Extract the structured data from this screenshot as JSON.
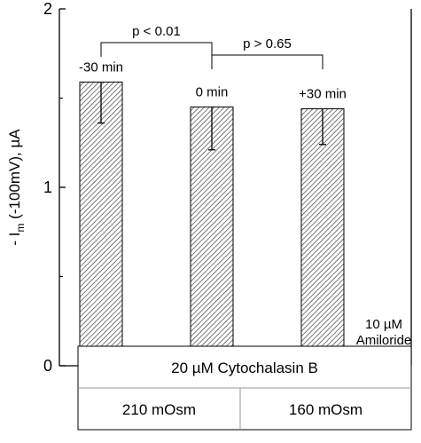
{
  "chart_data": {
    "type": "bar",
    "ylabel_prefix": "- I",
    "ylabel_sub": "m",
    "ylabel_suffix": " (-100mV), µA",
    "ylim": [
      0,
      2
    ],
    "yticks": [
      {
        "value": 0,
        "label": "0"
      },
      {
        "value": 1,
        "label": "1"
      },
      {
        "value": 2,
        "label": "2"
      }
    ],
    "grid": false,
    "bars": [
      {
        "label": "-30 min",
        "value": 1.59,
        "err_low": 1.36,
        "err_high": 1.59
      },
      {
        "label": "0 min",
        "value": 1.45,
        "err_low": 1.21,
        "err_high": 1.45
      },
      {
        "label": "+30 min",
        "value": 1.44,
        "err_low": 1.24,
        "err_high": 1.44
      },
      {
        "label": "10 µM",
        "label2": "Amiloride",
        "value": 0.06,
        "err_low": 0.06,
        "err_high": 0.06
      }
    ],
    "comparisons": [
      {
        "from": 0,
        "to": 1,
        "text": "p < 0.01"
      },
      {
        "from": 1,
        "to": 2,
        "text": "p > 0.65"
      }
    ],
    "table": {
      "top": "20 µM Cytochalasin B",
      "bottom": [
        "210 mOsm",
        "160 mOsm"
      ]
    }
  }
}
